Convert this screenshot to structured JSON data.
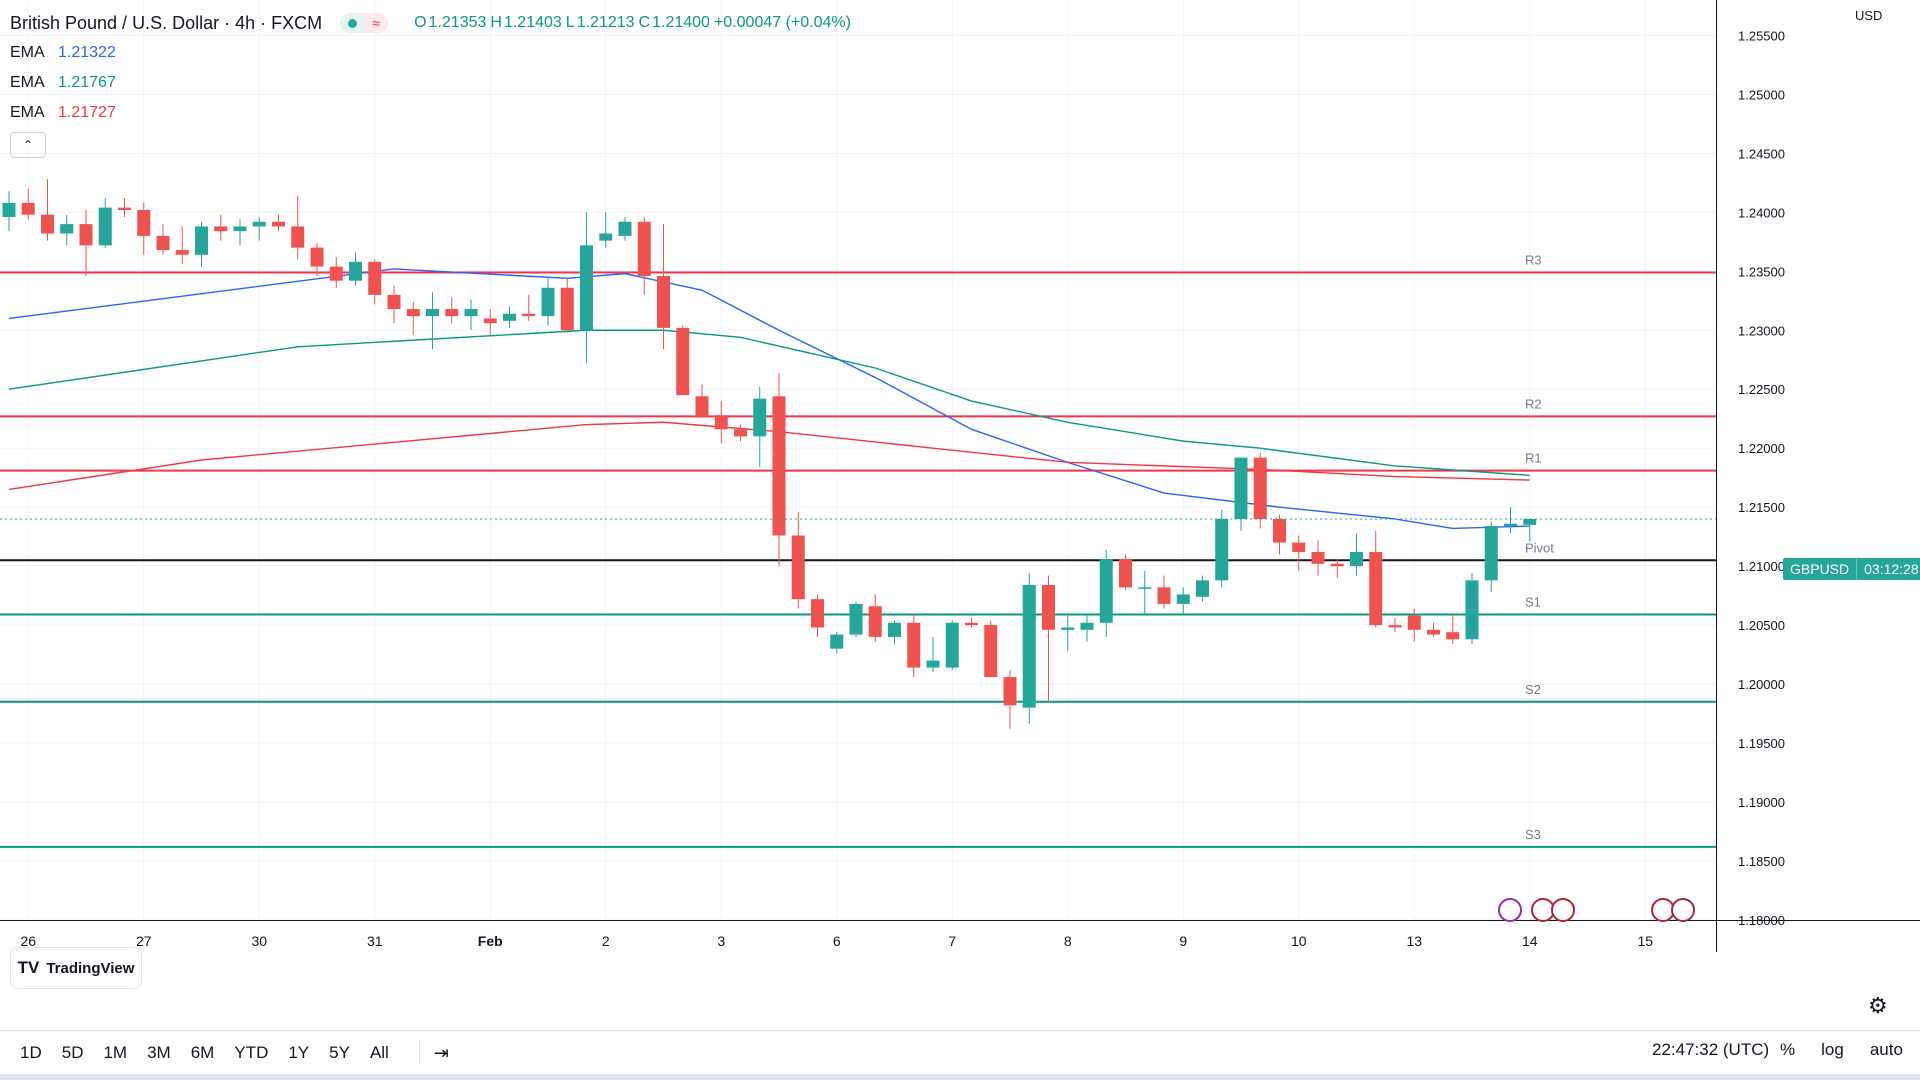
{
  "header": {
    "symbol_title": "British Pound / U.S. Dollar · 4h · FXCM",
    "ohlc": {
      "open_label": "O",
      "open": "1.21353",
      "high_label": "H",
      "high": "1.21403",
      "low_label": "L",
      "low": "1.21213",
      "close_label": "C",
      "close": "1.21400",
      "change": "+0.00047 (+0.04%)"
    }
  },
  "indicators": [
    {
      "name": "EMA",
      "value": "1.21322",
      "color": "#2962ff"
    },
    {
      "name": "EMA",
      "value": "1.21767",
      "color": "#089981"
    },
    {
      "name": "EMA",
      "value": "1.21727",
      "color": "#f23645"
    }
  ],
  "price_scale": {
    "currency": "USD",
    "tag_symbol": "GBPUSD",
    "tag_countdown": "03:12:28"
  },
  "chart_data": {
    "type": "candlestick",
    "title": "British Pound / U.S. Dollar · 4h · FXCM",
    "ylim": [
      1.18,
      1.258
    ],
    "y_ticks": [
      "1.18000",
      "1.18500",
      "1.19000",
      "1.19500",
      "1.20000",
      "1.20500",
      "1.21000",
      "1.21500",
      "1.22000",
      "1.22500",
      "1.23000",
      "1.23500",
      "1.24000",
      "1.24500",
      "1.25000",
      "1.25500"
    ],
    "x_ticks": [
      {
        "label": "26",
        "bar": 1
      },
      {
        "label": "27",
        "bar": 7
      },
      {
        "label": "30",
        "bar": 13
      },
      {
        "label": "31",
        "bar": 19
      },
      {
        "label": "Feb",
        "bar": 25
      },
      {
        "label": "2",
        "bar": 31
      },
      {
        "label": "3",
        "bar": 37
      },
      {
        "label": "6",
        "bar": 43
      },
      {
        "label": "7",
        "bar": 49
      },
      {
        "label": "8",
        "bar": 55
      },
      {
        "label": "9",
        "bar": 61
      },
      {
        "label": "10",
        "bar": 67
      },
      {
        "label": "13",
        "bar": 73
      },
      {
        "label": "14",
        "bar": 79
      },
      {
        "label": "15",
        "bar": 85
      }
    ],
    "candles": [
      [
        1.2396,
        1.2418,
        1.2384,
        1.2408
      ],
      [
        1.2408,
        1.242,
        1.2394,
        1.2398
      ],
      [
        1.2398,
        1.2428,
        1.2376,
        1.2382
      ],
      [
        1.2382,
        1.2398,
        1.2372,
        1.239
      ],
      [
        1.239,
        1.2402,
        1.2346,
        1.2372
      ],
      [
        1.2372,
        1.2412,
        1.237,
        1.2404
      ],
      [
        1.2404,
        1.2412,
        1.2396,
        1.2402
      ],
      [
        1.2402,
        1.2408,
        1.2364,
        1.238
      ],
      [
        1.238,
        1.239,
        1.2364,
        1.2368
      ],
      [
        1.2368,
        1.2388,
        1.2356,
        1.2364
      ],
      [
        1.2364,
        1.2392,
        1.2354,
        1.2388
      ],
      [
        1.2388,
        1.2398,
        1.2376,
        1.2384
      ],
      [
        1.2384,
        1.2394,
        1.2372,
        1.2388
      ],
      [
        1.2388,
        1.2396,
        1.2376,
        1.2392
      ],
      [
        1.2392,
        1.2398,
        1.2384,
        1.2388
      ],
      [
        1.2388,
        1.2414,
        1.236,
        1.237
      ],
      [
        1.237,
        1.2374,
        1.2346,
        1.2354
      ],
      [
        1.2354,
        1.2362,
        1.2336,
        1.2342
      ],
      [
        1.2342,
        1.2366,
        1.2338,
        1.2358
      ],
      [
        1.2358,
        1.236,
        1.2322,
        1.233
      ],
      [
        1.233,
        1.2338,
        1.2306,
        1.2318
      ],
      [
        1.2318,
        1.2324,
        1.2296,
        1.2312
      ],
      [
        1.2312,
        1.2332,
        1.2284,
        1.2318
      ],
      [
        1.2318,
        1.2328,
        1.2306,
        1.2312
      ],
      [
        1.2312,
        1.2326,
        1.23,
        1.2318
      ],
      [
        1.231,
        1.2318,
        1.2296,
        1.2306
      ],
      [
        1.2308,
        1.232,
        1.2302,
        1.2314
      ],
      [
        1.2314,
        1.233,
        1.2308,
        1.2312
      ],
      [
        1.2312,
        1.2346,
        1.2304,
        1.2336
      ],
      [
        1.2336,
        1.2344,
        1.2298,
        1.23
      ],
      [
        1.23,
        1.24,
        1.2272,
        1.2372
      ],
      [
        1.2376,
        1.24,
        1.237,
        1.2382
      ],
      [
        1.238,
        1.2396,
        1.2376,
        1.2392
      ],
      [
        1.2392,
        1.2396,
        1.233,
        1.2346
      ],
      [
        1.2346,
        1.239,
        1.2284,
        1.2302
      ],
      [
        1.2302,
        1.2304,
        1.2246,
        1.2245
      ],
      [
        1.2244,
        1.2254,
        1.2226,
        1.2226
      ],
      [
        1.2228,
        1.224,
        1.2204,
        1.2216
      ],
      [
        1.2216,
        1.222,
        1.2206,
        1.221
      ],
      [
        1.221,
        1.2252,
        1.2184,
        1.2242
      ],
      [
        1.2244,
        1.2264,
        1.21,
        1.2126
      ],
      [
        1.2126,
        1.2146,
        1.2064,
        1.2072
      ],
      [
        1.2072,
        1.2076,
        1.204,
        1.2048
      ],
      [
        1.203,
        1.2044,
        1.2026,
        1.2042
      ],
      [
        1.2042,
        1.207,
        1.204,
        1.2068
      ],
      [
        1.2066,
        1.2076,
        1.2036,
        1.204
      ],
      [
        1.204,
        1.2054,
        1.2034,
        1.2052
      ],
      [
        1.2052,
        1.206,
        1.2006,
        1.2014
      ],
      [
        1.2014,
        1.204,
        1.201,
        1.202
      ],
      [
        1.2014,
        1.2054,
        1.2012,
        1.2052
      ],
      [
        1.2052,
        1.2056,
        1.2048,
        1.205
      ],
      [
        1.205,
        1.2054,
        1.2008,
        1.2006
      ],
      [
        1.2006,
        1.2012,
        1.1962,
        1.1982
      ],
      [
        1.198,
        1.2094,
        1.1966,
        1.2084
      ],
      [
        1.2084,
        1.2092,
        1.1986,
        1.2046
      ],
      [
        1.2046,
        1.206,
        1.2028,
        1.2048
      ],
      [
        1.2046,
        1.206,
        1.2036,
        1.2052
      ],
      [
        1.2052,
        1.2114,
        1.204,
        1.2106
      ],
      [
        1.2106,
        1.211,
        1.208,
        1.2082
      ],
      [
        1.2082,
        1.2096,
        1.2058,
        1.2082
      ],
      [
        1.2082,
        1.2092,
        1.2064,
        1.2068
      ],
      [
        1.2068,
        1.2082,
        1.206,
        1.2076
      ],
      [
        1.2074,
        1.2092,
        1.207,
        1.2088
      ],
      [
        1.2088,
        1.2148,
        1.2082,
        1.214
      ],
      [
        1.214,
        1.2192,
        1.213,
        1.2192
      ],
      [
        1.2192,
        1.2196,
        1.2132,
        1.214
      ],
      [
        1.214,
        1.2144,
        1.211,
        1.212
      ],
      [
        1.212,
        1.2126,
        1.2096,
        1.2112
      ],
      [
        1.2112,
        1.2122,
        1.2092,
        1.2102
      ],
      [
        1.2102,
        1.2106,
        1.209,
        1.21
      ],
      [
        1.21,
        1.2128,
        1.2092,
        1.2112
      ],
      [
        1.2112,
        1.213,
        1.2048,
        1.205
      ],
      [
        1.205,
        1.2056,
        1.2044,
        1.2048
      ],
      [
        1.2058,
        1.2064,
        1.2036,
        1.2046
      ],
      [
        1.2046,
        1.2052,
        1.204,
        1.2042
      ],
      [
        1.2044,
        1.206,
        1.2034,
        1.2038
      ],
      [
        1.2038,
        1.2094,
        1.2034,
        1.2088
      ],
      [
        1.2088,
        1.2138,
        1.2078,
        1.2134
      ],
      [
        1.2134,
        1.215,
        1.2128,
        1.2136
      ],
      [
        1.2135,
        1.214,
        1.2121,
        1.214
      ]
    ],
    "ema_series": [
      {
        "name": "EMA",
        "color": "#2962ff",
        "points": [
          [
            0,
            1.231
          ],
          [
            20,
            1.2352
          ],
          [
            29,
            1.2344
          ],
          [
            32,
            1.2348
          ],
          [
            36,
            1.2334
          ],
          [
            40,
            1.23
          ],
          [
            45,
            1.226
          ],
          [
            50,
            1.2216
          ],
          [
            55,
            1.2188
          ],
          [
            60,
            1.2162
          ],
          [
            66,
            1.215
          ],
          [
            72,
            1.214
          ],
          [
            75,
            1.2132
          ],
          [
            79,
            1.2134
          ]
        ]
      },
      {
        "name": "EMA",
        "color": "#089981",
        "points": [
          [
            0,
            1.225
          ],
          [
            15,
            1.2286
          ],
          [
            30,
            1.23
          ],
          [
            34,
            1.23
          ],
          [
            38,
            1.2294
          ],
          [
            45,
            1.2268
          ],
          [
            50,
            1.224
          ],
          [
            55,
            1.2222
          ],
          [
            61,
            1.2206
          ],
          [
            65,
            1.22
          ],
          [
            72,
            1.2185
          ],
          [
            79,
            1.2177
          ]
        ]
      },
      {
        "name": "EMA",
        "color": "#f23645",
        "points": [
          [
            0,
            1.2165
          ],
          [
            10,
            1.219
          ],
          [
            20,
            1.2205
          ],
          [
            30,
            1.222
          ],
          [
            34,
            1.2222
          ],
          [
            40,
            1.2214
          ],
          [
            48,
            1.22
          ],
          [
            55,
            1.2188
          ],
          [
            65,
            1.2182
          ],
          [
            72,
            1.2176
          ],
          [
            79,
            1.2173
          ]
        ]
      }
    ],
    "levels": [
      {
        "name": "R3",
        "value": 1.2349,
        "color": "#f23645"
      },
      {
        "name": "R2",
        "value": 1.2227,
        "color": "#f23645"
      },
      {
        "name": "R1",
        "value": 1.2181,
        "color": "#f23645"
      },
      {
        "name": "Pivot",
        "value": 1.2105,
        "color": "#131722"
      },
      {
        "name": "S1",
        "value": 1.2059,
        "color": "#089981"
      },
      {
        "name": "S2",
        "value": 1.1985,
        "color": "#089981"
      },
      {
        "name": "S3",
        "value": 1.1862,
        "color": "#089981"
      }
    ]
  },
  "branding": {
    "logo_text": "TradingView"
  },
  "toolbar": {
    "ranges": [
      "1D",
      "5D",
      "1M",
      "3M",
      "6M",
      "YTD",
      "1Y",
      "5Y",
      "All"
    ],
    "clock": "22:47:32 (UTC)",
    "percent": "%",
    "log": "log",
    "auto": "auto"
  },
  "colors": {
    "up": "#26a69a",
    "down": "#ef5350",
    "grid": "#f0f3fa"
  }
}
